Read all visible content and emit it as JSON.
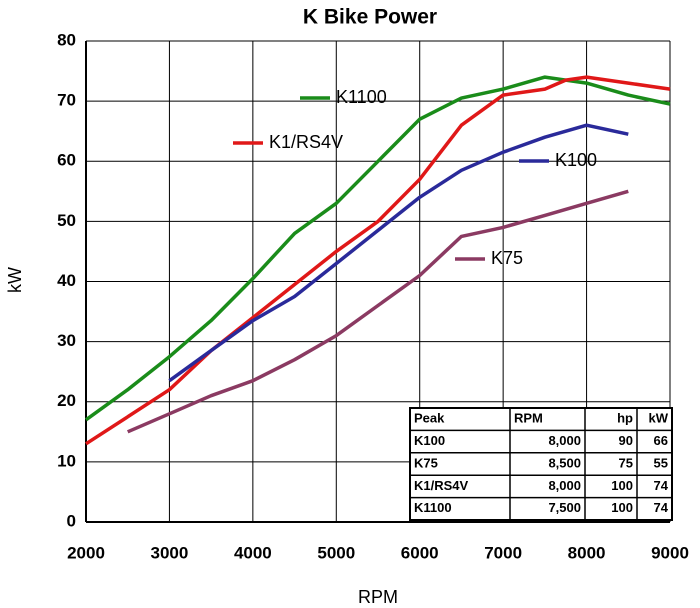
{
  "chart_data": {
    "type": "line",
    "title": "K Bike Power",
    "xlabel": "RPM",
    "ylabel": "kW",
    "xlim": [
      2000,
      9000
    ],
    "xticks": [
      2000,
      3000,
      4000,
      5000,
      6000,
      7000,
      8000,
      9000
    ],
    "ylim": [
      0,
      80
    ],
    "yticks": [
      0,
      10,
      20,
      30,
      40,
      50,
      60,
      70,
      80
    ],
    "grid": true,
    "series": [
      {
        "name": "K1100",
        "color": "#1a8c1a",
        "x": [
          2000,
          2500,
          3000,
          3500,
          4000,
          4500,
          5000,
          5500,
          6000,
          6500,
          7000,
          7500,
          8000,
          8500,
          9000
        ],
        "values": [
          17,
          22,
          27.5,
          33.5,
          40.5,
          48,
          53,
          60,
          67,
          70.5,
          72,
          74,
          73,
          71,
          69.5
        ]
      },
      {
        "name": "K1/RS4V",
        "color": "#e01818",
        "x": [
          2000,
          2500,
          3000,
          3500,
          4000,
          4500,
          5000,
          5500,
          6000,
          6500,
          7000,
          7500,
          7750,
          8000,
          8500,
          9000
        ],
        "values": [
          13,
          17.5,
          22,
          28.5,
          34,
          39.5,
          45,
          50,
          57,
          66,
          71,
          72,
          73.5,
          74,
          73,
          72
        ]
      },
      {
        "name": "K100",
        "color": "#2a2a9a",
        "x": [
          3000,
          3500,
          4000,
          4500,
          5000,
          5500,
          6000,
          6500,
          7000,
          7500,
          8000,
          8500
        ],
        "values": [
          23.5,
          28.5,
          33.5,
          37.5,
          43,
          48.5,
          54,
          58.5,
          61.5,
          64,
          66,
          64.5
        ]
      },
      {
        "name": "K75",
        "color": "#8b3a62",
        "x": [
          2500,
          3000,
          3500,
          4000,
          4500,
          5000,
          5500,
          6000,
          6500,
          7000,
          7500,
          8000,
          8500
        ],
        "values": [
          15,
          18,
          21,
          23.5,
          27,
          31,
          36,
          41,
          47.5,
          49,
          51,
          53,
          55
        ]
      }
    ],
    "table": {
      "columns": [
        "Peak",
        "RPM",
        "hp",
        "kW"
      ],
      "rows": [
        [
          "K100",
          "8,000",
          "90",
          "66"
        ],
        [
          "K75",
          "8,500",
          "75",
          "55"
        ],
        [
          "K1/RS4V",
          "8,000",
          "100",
          "74"
        ],
        [
          "K1100",
          "7,500",
          "100",
          "74"
        ]
      ]
    }
  }
}
